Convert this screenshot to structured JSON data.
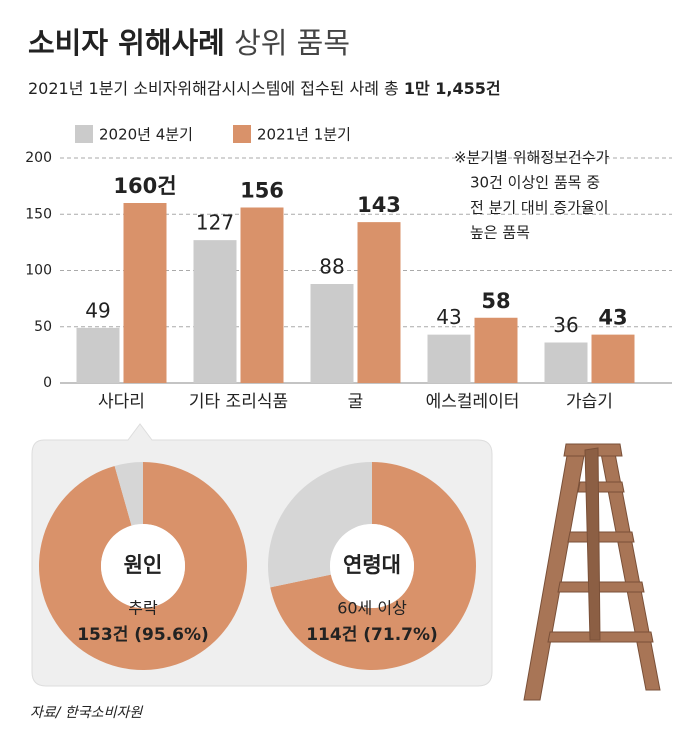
{
  "header": {
    "title_bold": "소비자 위해사례",
    "title_light": "상위 품목",
    "subtitle": "2021년 1분기 소비자위해감시시스템에 접수된 사례 총",
    "subtitle_total": "1만 1,455건"
  },
  "chart_data": [
    {
      "type": "bar",
      "categories": [
        "사다리",
        "기타 조리식품",
        "굴",
        "에스컬레이터",
        "가습기"
      ],
      "series": [
        {
          "name": "2020년 4분기",
          "color": "#cbcbcb",
          "values": [
            49,
            127,
            88,
            43,
            36
          ]
        },
        {
          "name": "2021년 1분기",
          "color": "#d9926a",
          "values": [
            160,
            156,
            143,
            58,
            43
          ],
          "value_labels": [
            "160건",
            "156",
            "143",
            "58",
            "43"
          ]
        }
      ],
      "ylim": [
        0,
        200
      ],
      "yticks": [
        0,
        50,
        100,
        150,
        200
      ],
      "grid": true,
      "annotation": [
        "※분기별 위해정보건수가",
        "30건 이상인 품목 중",
        "전 분기 대비 증가율이",
        "높은 품목"
      ]
    },
    {
      "type": "pie",
      "title": "원인",
      "categories": [
        "추락",
        null
      ],
      "values": [
        95.6,
        4.4
      ],
      "value_labels": [
        "153건 (95.6%)",
        null
      ],
      "colors": [
        "#d9926a",
        "#d6d6d6"
      ]
    },
    {
      "type": "pie",
      "title": "연령대",
      "categories": [
        "60세 이상",
        null
      ],
      "values": [
        71.7,
        28.3
      ],
      "value_labels": [
        "114건 (71.7%)",
        null
      ],
      "colors": [
        "#d9926a",
        "#d6d6d6"
      ]
    }
  ],
  "source": "자료/ 한국소비자원"
}
